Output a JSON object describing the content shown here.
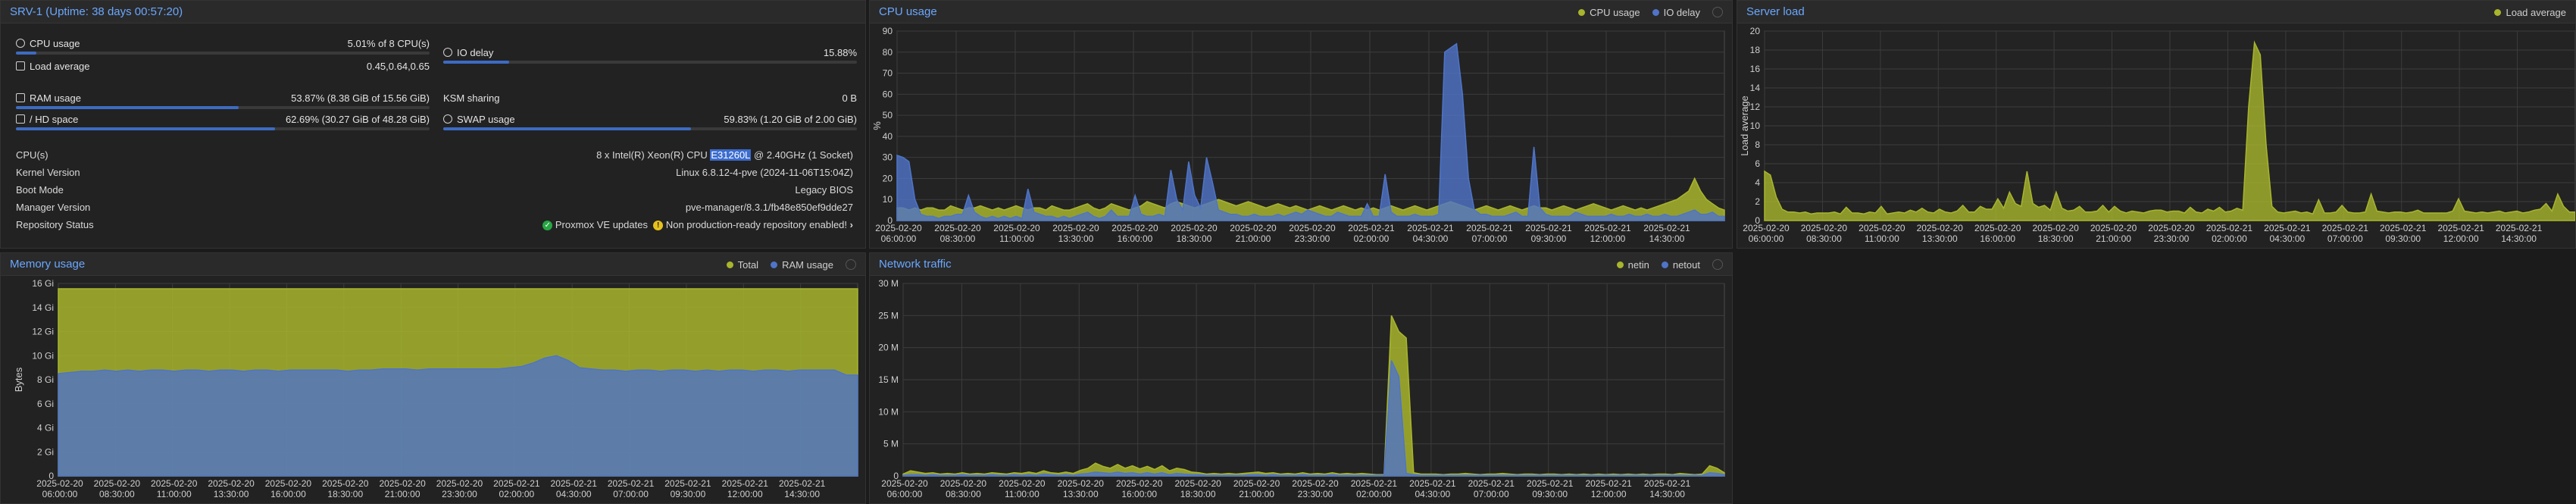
{
  "status": {
    "title": "SRV-1 (Uptime: 38 days 00:57:20)",
    "meters": {
      "cpu": {
        "label": "CPU usage",
        "value": "5.01% of 8 CPU(s)",
        "fraction": 0.0501
      },
      "load": {
        "label": "Load average",
        "value": "0.45,0.64,0.65"
      },
      "io": {
        "label": "IO delay",
        "value": "15.88%",
        "fraction": 0.1588
      },
      "ram": {
        "label": "RAM usage",
        "value": "53.87% (8.38 GiB of 15.56 GiB)",
        "fraction": 0.5387
      },
      "ksm": {
        "label": "KSM sharing",
        "value": "0 B"
      },
      "hd": {
        "label": "/ HD space",
        "value": "62.69% (30.27 GiB of 48.28 GiB)",
        "fraction": 0.6269
      },
      "swap": {
        "label": "SWAP usage",
        "value": "59.83% (1.20 GiB of 2.00 GiB)",
        "fraction": 0.5983
      }
    },
    "info": {
      "cpus_label": "CPU(s)",
      "cpus_pre": "8 x Intel(R) Xeon(R) CPU ",
      "cpus_hl": "E31260L",
      "cpus_post": " @ 2.40GHz (1 Socket)",
      "kernel_label": "Kernel Version",
      "kernel_value": "Linux 6.8.12-4-pve (2024-11-06T15:04Z)",
      "boot_label": "Boot Mode",
      "boot_value": "Legacy BIOS",
      "manager_label": "Manager Version",
      "manager_value": "pve-manager/8.3.1/fb48e850ef9dde27",
      "repo_label": "Repository Status",
      "repo_ok": "Proxmox VE updates",
      "repo_warn": "Non production-ready repository enabled!"
    }
  },
  "colors": {
    "cpu": "#a8b52d",
    "io": "#4f74c8",
    "ram": "#4f74c8",
    "total": "#a8b52d",
    "netin": "#a8b52d",
    "netout": "#4f74c8",
    "load": "#a8b52d"
  },
  "time_labels": [
    [
      "2025-02-20",
      "06:00:00"
    ],
    [
      "2025-02-20",
      "08:30:00"
    ],
    [
      "2025-02-20",
      "11:00:00"
    ],
    [
      "2025-02-20",
      "13:30:00"
    ],
    [
      "2025-02-20",
      "16:00:00"
    ],
    [
      "2025-02-20",
      "18:30:00"
    ],
    [
      "2025-02-20",
      "21:00:00"
    ],
    [
      "2025-02-20",
      "23:30:00"
    ],
    [
      "2025-02-21",
      "02:00:00"
    ],
    [
      "2025-02-21",
      "04:30:00"
    ],
    [
      "2025-02-21",
      "07:00:00"
    ],
    [
      "2025-02-21",
      "09:30:00"
    ],
    [
      "2025-02-21",
      "12:00:00"
    ],
    [
      "2025-02-21",
      "14:30:00"
    ]
  ],
  "chart_data": [
    {
      "id": "cpu",
      "type": "area",
      "title": "CPU usage",
      "ylabel": "%",
      "ylim": [
        0,
        90
      ],
      "yticks": [
        "0",
        "10",
        "20",
        "30",
        "40",
        "50",
        "60",
        "70",
        "80",
        "90"
      ],
      "series": [
        {
          "name": "CPU usage",
          "values": [
            6,
            6,
            5,
            6,
            5,
            6,
            6,
            5,
            5,
            7,
            6,
            5,
            6,
            6,
            7,
            6,
            5,
            6,
            5,
            6,
            7,
            6,
            5,
            6,
            6,
            5,
            7,
            6,
            5,
            5,
            6,
            7,
            8,
            6,
            5,
            6,
            8,
            7,
            6,
            5,
            6,
            7,
            9,
            8,
            7,
            6,
            8,
            9,
            8,
            7,
            6,
            7,
            8,
            9,
            10,
            9,
            8,
            7,
            8,
            9,
            8,
            7,
            6,
            7,
            8,
            7,
            6,
            7,
            6,
            5,
            6,
            7,
            6,
            5,
            6,
            7,
            6,
            5,
            6,
            5,
            6,
            5,
            6,
            7,
            6,
            5,
            6,
            7,
            6,
            5,
            6,
            7,
            8,
            9,
            8,
            7,
            6,
            5,
            6,
            7,
            6,
            5,
            6,
            7,
            6,
            5,
            6,
            7,
            6,
            6,
            5,
            6,
            7,
            6,
            5,
            6,
            7,
            8,
            7,
            6,
            5,
            6,
            7,
            6,
            5,
            6,
            5,
            6,
            7,
            8,
            9,
            10,
            12,
            14,
            20,
            14,
            10,
            8,
            6,
            5
          ]
        },
        {
          "name": "IO delay",
          "values": [
            31,
            30,
            28,
            10,
            3,
            2,
            2,
            1,
            2,
            2,
            3,
            3,
            12,
            4,
            2,
            1,
            2,
            1,
            2,
            1,
            2,
            1,
            15,
            4,
            3,
            2,
            2,
            1,
            2,
            1,
            2,
            3,
            4,
            2,
            1,
            2,
            5,
            2,
            2,
            2,
            12,
            3,
            2,
            2,
            3,
            2,
            24,
            10,
            5,
            28,
            12,
            6,
            30,
            18,
            5,
            4,
            3,
            3,
            2,
            2,
            3,
            2,
            2,
            2,
            3,
            2,
            3,
            4,
            3,
            5,
            4,
            3,
            2,
            2,
            4,
            3,
            2,
            2,
            2,
            8,
            2,
            2,
            22,
            4,
            2,
            2,
            2,
            3,
            2,
            2,
            2,
            3,
            80,
            82,
            84,
            60,
            20,
            5,
            3,
            3,
            2,
            2,
            2,
            3,
            4,
            2,
            2,
            35,
            6,
            3,
            2,
            2,
            2,
            2,
            4,
            3,
            2,
            2,
            2,
            2,
            3,
            2,
            2,
            3,
            2,
            2,
            3,
            2,
            2,
            3,
            2,
            2,
            3,
            4,
            5,
            3,
            3,
            4,
            2,
            2
          ]
        }
      ]
    },
    {
      "id": "load",
      "type": "area",
      "title": "Server load",
      "ylabel": "Load average",
      "ylim": [
        0,
        20
      ],
      "yticks": [
        "0",
        "2",
        "4",
        "6",
        "8",
        "10",
        "12",
        "14",
        "16",
        "18",
        "20"
      ],
      "series": [
        {
          "name": "Load average",
          "values": [
            5.2,
            4.8,
            2.5,
            1.2,
            0.9,
            0.9,
            0.8,
            0.9,
            0.7,
            0.8,
            0.8,
            0.8,
            0.9,
            0.7,
            1.4,
            0.8,
            0.8,
            0.7,
            0.9,
            0.8,
            1.5,
            0.7,
            0.8,
            0.9,
            0.8,
            1.1,
            0.9,
            1.3,
            0.9,
            0.8,
            1.2,
            0.9,
            0.8,
            1.0,
            1.6,
            0.9,
            0.9,
            1.5,
            1.2,
            1.2,
            2.3,
            1.3,
            3.0,
            1.8,
            1.5,
            5.2,
            1.8,
            1.4,
            1.6,
            1.1,
            3.0,
            1.3,
            1.0,
            1.1,
            1.5,
            0.9,
            0.9,
            1.0,
            1.6,
            0.9,
            1.5,
            1.0,
            0.8,
            1.0,
            0.9,
            0.8,
            1.0,
            1.1,
            1.1,
            0.9,
            1.0,
            1.0,
            0.8,
            1.4,
            0.9,
            0.8,
            1.2,
            1.0,
            1.4,
            0.9,
            1.0,
            1.3,
            1.1,
            12.0,
            18.8,
            17.5,
            8.0,
            1.5,
            0.9,
            0.8,
            0.9,
            1.0,
            0.8,
            0.9,
            0.7,
            2.2,
            0.8,
            0.8,
            0.9,
            1.6,
            0.9,
            0.8,
            0.8,
            0.9,
            2.8,
            1.0,
            0.9,
            0.8,
            0.9,
            0.9,
            0.8,
            0.9,
            1.1,
            0.8,
            0.8,
            0.8,
            0.8,
            0.8,
            1.0,
            2.3,
            1.0,
            0.9,
            0.8,
            0.9,
            0.8,
            0.9,
            1.0,
            0.8,
            0.9,
            1.0,
            0.8,
            0.9,
            1.1,
            1.2,
            1.8,
            1.0,
            2.8,
            1.5,
            0.9,
            0.9
          ]
        }
      ]
    },
    {
      "id": "mem",
      "type": "area",
      "title": "Memory usage",
      "ylabel": "Bytes",
      "ylim": [
        0,
        16
      ],
      "yticks": [
        "0",
        "2 Gi",
        "4 Gi",
        "6 Gi",
        "8 Gi",
        "10 Gi",
        "12 Gi",
        "14 Gi",
        "16 Gi"
      ],
      "series": [
        {
          "name": "Total",
          "values": [
            15.56,
            15.56,
            15.56,
            15.56,
            15.56,
            15.56,
            15.56,
            15.56,
            15.56,
            15.56,
            15.56,
            15.56,
            15.56,
            15.56,
            15.56,
            15.56,
            15.56,
            15.56,
            15.56,
            15.56,
            15.56,
            15.56,
            15.56,
            15.56,
            15.56,
            15.56,
            15.56,
            15.56,
            15.56,
            15.56,
            15.56,
            15.56,
            15.56,
            15.56,
            15.56,
            15.56,
            15.56,
            15.56,
            15.56,
            15.56,
            15.56,
            15.56,
            15.56,
            15.56,
            15.56,
            15.56,
            15.56,
            15.56,
            15.56,
            15.56,
            15.56,
            15.56,
            15.56,
            15.56,
            15.56,
            15.56,
            15.56,
            15.56,
            15.56,
            15.56,
            15.56,
            15.56,
            15.56,
            15.56,
            15.56,
            15.56,
            15.56,
            15.56,
            15.56,
            15.56
          ]
        },
        {
          "name": "RAM usage",
          "values": [
            8.5,
            8.6,
            8.7,
            8.7,
            8.8,
            8.7,
            8.8,
            8.7,
            8.8,
            8.8,
            8.7,
            8.8,
            8.8,
            8.7,
            8.8,
            8.8,
            8.7,
            8.8,
            8.8,
            8.7,
            8.8,
            8.8,
            8.8,
            8.8,
            8.8,
            8.7,
            8.8,
            8.8,
            8.9,
            8.9,
            8.9,
            8.8,
            8.9,
            8.9,
            8.9,
            8.9,
            8.9,
            8.9,
            8.9,
            9.0,
            9.1,
            9.4,
            9.8,
            10.0,
            9.6,
            9.0,
            8.9,
            8.8,
            8.8,
            8.7,
            8.8,
            8.8,
            8.7,
            8.8,
            8.8,
            8.7,
            8.8,
            8.7,
            8.8,
            8.8,
            8.7,
            8.8,
            8.8,
            8.7,
            8.8,
            8.8,
            8.8,
            8.8,
            8.4,
            8.38
          ]
        }
      ]
    },
    {
      "id": "net",
      "type": "area",
      "title": "Network traffic",
      "ylabel": "",
      "ylim": [
        0,
        30
      ],
      "yticks": [
        "0",
        "5 M",
        "10 M",
        "15 M",
        "20 M",
        "25 M",
        "30 M"
      ],
      "series": [
        {
          "name": "netin",
          "values": [
            0.3,
            0.8,
            0.6,
            0.4,
            0.5,
            0.3,
            0.4,
            0.3,
            0.5,
            0.3,
            0.4,
            0.3,
            0.5,
            0.4,
            0.3,
            0.5,
            0.4,
            0.6,
            0.4,
            0.8,
            0.5,
            0.4,
            0.6,
            0.4,
            0.9,
            1.2,
            2.0,
            1.5,
            1.2,
            1.8,
            1.2,
            1.6,
            1.1,
            1.5,
            1.0,
            1.6,
            0.8,
            1.2,
            1.0,
            0.6,
            0.5,
            0.3,
            0.4,
            0.3,
            0.4,
            0.3,
            0.4,
            0.5,
            0.6,
            0.4,
            0.5,
            0.3,
            0.4,
            0.3,
            0.5,
            0.3,
            0.4,
            0.3,
            0.5,
            0.3,
            0.4,
            0.3,
            0.4,
            0.3,
            0.2,
            0.2,
            25.0,
            22.5,
            21.5,
            0.5,
            0.3,
            0.3,
            0.3,
            0.2,
            0.3,
            0.3,
            0.4,
            0.3,
            0.2,
            0.3,
            0.3,
            0.4,
            0.3,
            0.2,
            0.3,
            0.3,
            0.2,
            0.3,
            0.3,
            0.2,
            0.3,
            0.2,
            0.3,
            0.2,
            0.3,
            0.2,
            0.3,
            0.2,
            0.3,
            0.2,
            0.3,
            0.2,
            0.3,
            0.3,
            0.2,
            0.4,
            0.3,
            0.2,
            0.3,
            1.6,
            1.2,
            0.5
          ]
        },
        {
          "name": "netout",
          "values": [
            0.1,
            0.2,
            0.2,
            0.1,
            0.2,
            0.1,
            0.1,
            0.1,
            0.2,
            0.1,
            0.1,
            0.1,
            0.2,
            0.1,
            0.1,
            0.2,
            0.1,
            0.2,
            0.1,
            0.3,
            0.2,
            0.1,
            0.2,
            0.1,
            0.3,
            0.4,
            0.6,
            0.5,
            0.4,
            0.6,
            0.4,
            0.5,
            0.3,
            0.5,
            0.3,
            0.5,
            0.2,
            0.4,
            0.3,
            0.2,
            0.2,
            0.1,
            0.1,
            0.1,
            0.1,
            0.1,
            0.1,
            0.2,
            0.2,
            0.1,
            0.2,
            0.1,
            0.1,
            0.1,
            0.2,
            0.1,
            0.1,
            0.1,
            0.2,
            0.1,
            0.1,
            0.1,
            0.1,
            0.1,
            0.1,
            0.1,
            18.0,
            15.5,
            0.4,
            0.2,
            0.1,
            0.1,
            0.1,
            0.1,
            0.1,
            0.1,
            0.1,
            0.1,
            0.1,
            0.1,
            0.1,
            0.1,
            0.1,
            0.1,
            0.1,
            0.1,
            0.1,
            0.1,
            0.1,
            0.1,
            0.1,
            0.1,
            0.1,
            0.1,
            0.1,
            0.1,
            0.1,
            0.1,
            0.1,
            0.1,
            0.1,
            0.1,
            0.1,
            0.1,
            0.1,
            0.1,
            0.1,
            0.1,
            0.1,
            0.5,
            0.4,
            0.2
          ]
        }
      ]
    }
  ]
}
